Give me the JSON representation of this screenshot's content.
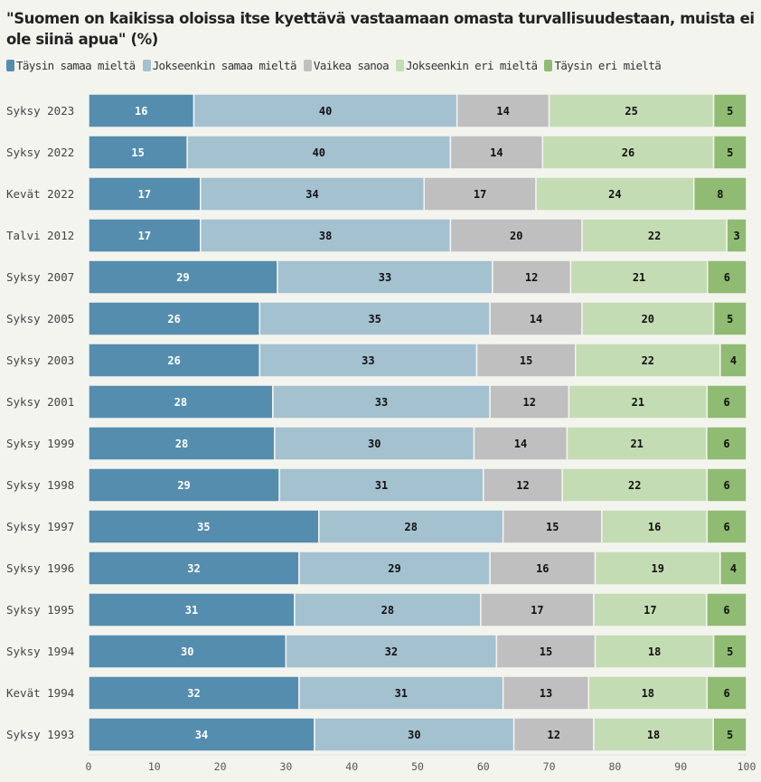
{
  "chart_data": {
    "type": "bar",
    "orientation": "horizontal",
    "stacked": true,
    "title": "\"Suomen on kaikissa oloissa itse kyettävä vastaamaan omasta turvallisuudestaan, muista ei ole siinä apua\" (%)",
    "xlabel": "",
    "ylabel": "",
    "xlim": [
      0,
      100
    ],
    "xticks": [
      0,
      10,
      20,
      30,
      40,
      50,
      60,
      70,
      80,
      90,
      100
    ],
    "grid": false,
    "legend_position": "top-left",
    "categories": [
      "Syksy 2023",
      "Syksy 2022",
      "Kevät 2022",
      "Talvi 2012",
      "Syksy 2007",
      "Syksy 2005",
      "Syksy 2003",
      "Syksy 2001",
      "Syksy 1999",
      "Syksy 1998",
      "Syksy 1997",
      "Syksy 1996",
      "Syksy 1995",
      "Syksy 1994",
      "Kevät 1994",
      "Syksy 1993"
    ],
    "series": [
      {
        "name": "Täysin samaa mieltä",
        "color": "#558dae",
        "label_color": "#ffffff",
        "values": [
          16,
          15,
          17,
          17,
          29,
          26,
          26,
          28,
          28,
          29,
          35,
          32,
          31,
          30,
          32,
          34
        ]
      },
      {
        "name": "Jokseenkin samaa mieltä",
        "color": "#a4c1d0",
        "label_color": "#111111",
        "values": [
          40,
          40,
          34,
          38,
          33,
          35,
          33,
          33,
          30,
          31,
          28,
          29,
          28,
          32,
          31,
          30
        ]
      },
      {
        "name": "Vaikea sanoa",
        "color": "#bfbfbf",
        "label_color": "#111111",
        "values": [
          14,
          14,
          17,
          20,
          12,
          14,
          15,
          12,
          14,
          12,
          15,
          16,
          17,
          15,
          13,
          12
        ]
      },
      {
        "name": "Jokseenkin eri mieltä",
        "color": "#c4dcb3",
        "label_color": "#111111",
        "values": [
          25,
          26,
          24,
          22,
          21,
          20,
          22,
          21,
          21,
          22,
          16,
          19,
          17,
          18,
          18,
          18
        ]
      },
      {
        "name": "Täysin eri mieltä",
        "color": "#8fbb72",
        "label_color": "#111111",
        "values": [
          5,
          5,
          8,
          3,
          6,
          5,
          4,
          6,
          6,
          6,
          6,
          4,
          6,
          5,
          6,
          5
        ]
      }
    ]
  }
}
